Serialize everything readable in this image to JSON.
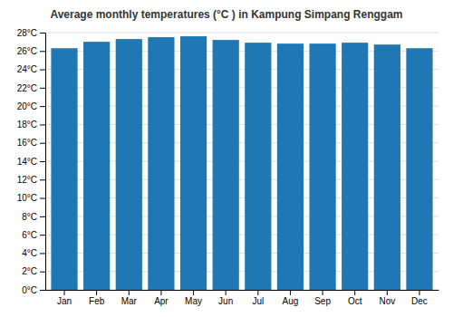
{
  "chart_data": {
    "type": "bar",
    "title": "Average monthly temperatures (°C ) in Kampung Simpang Renggam",
    "categories": [
      "Jan",
      "Feb",
      "Mar",
      "Apr",
      "May",
      "Jun",
      "Jul",
      "Aug",
      "Sep",
      "Oct",
      "Nov",
      "Dec"
    ],
    "values": [
      26.3,
      27.0,
      27.3,
      27.5,
      27.6,
      27.2,
      26.9,
      26.8,
      26.8,
      26.9,
      26.7,
      26.3
    ],
    "ylim": [
      0,
      28
    ],
    "yticks": [
      {
        "value": 0,
        "label": "0°C"
      },
      {
        "value": 2,
        "label": "2°C"
      },
      {
        "value": 4,
        "label": "4°C"
      },
      {
        "value": 6,
        "label": "6°C"
      },
      {
        "value": 8,
        "label": "8°C"
      },
      {
        "value": 10,
        "label": "10°C"
      },
      {
        "value": 12,
        "label": "12°C"
      },
      {
        "value": 14,
        "label": "14°C"
      },
      {
        "value": 16,
        "label": "16°C"
      },
      {
        "value": 18,
        "label": "18°C"
      },
      {
        "value": 20,
        "label": "20°C"
      },
      {
        "value": 22,
        "label": "22°C"
      },
      {
        "value": 24,
        "label": "24°C"
      },
      {
        "value": 26,
        "label": "26°C"
      },
      {
        "value": 28,
        "label": "28°C"
      }
    ],
    "grid": true
  }
}
